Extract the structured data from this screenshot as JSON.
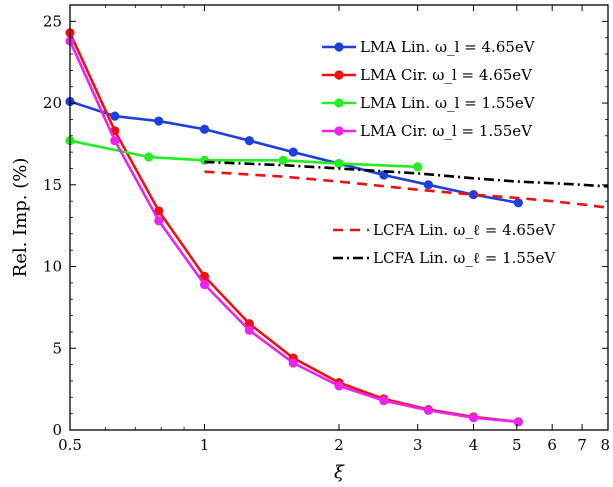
{
  "chart_data": {
    "type": "line",
    "xlabel": "ξ",
    "ylabel": "Rel. Imp. (%)",
    "xscale": "log",
    "xlim": [
      0.5,
      8
    ],
    "ylim": [
      0,
      26
    ],
    "grid": false,
    "legend_placement": "top-right",
    "x_ticks": [
      {
        "value": 0.5,
        "label": "0.5"
      },
      {
        "value": 1,
        "label": "1"
      },
      {
        "value": 2,
        "label": "2"
      },
      {
        "value": 3,
        "label": "3"
      },
      {
        "value": 4,
        "label": "4"
      },
      {
        "value": 5,
        "label": "5"
      },
      {
        "value": 6,
        "label": "6"
      },
      {
        "value": 7,
        "label": "7"
      },
      {
        "value": 8,
        "label": "8"
      }
    ],
    "y_ticks": [
      {
        "value": 0,
        "label": "0"
      },
      {
        "value": 5,
        "label": "5"
      },
      {
        "value": 10,
        "label": "10"
      },
      {
        "value": 15,
        "label": "15"
      },
      {
        "value": 20,
        "label": "20"
      },
      {
        "value": 25,
        "label": "25"
      }
    ],
    "series": [
      {
        "name": "LMA  Lin.  ω_l = 4.65eV",
        "color": "#1f3fdc",
        "style": "solid-markers",
        "x": [
          0.5,
          0.63,
          0.79,
          1.0,
          1.26,
          1.58,
          2.0,
          2.52,
          3.17,
          4.0,
          5.04
        ],
        "y": [
          20.1,
          19.2,
          18.9,
          18.4,
          17.7,
          17.0,
          16.3,
          15.6,
          15.0,
          14.4,
          13.9
        ]
      },
      {
        "name": "LMA  Cir.  ω_l = 4.65eV",
        "color": "#ee1111",
        "style": "solid-markers",
        "x": [
          0.5,
          0.63,
          0.79,
          1.0,
          1.26,
          1.58,
          2.0,
          2.52,
          3.17,
          4.0,
          5.04
        ],
        "y": [
          24.3,
          18.3,
          13.4,
          9.4,
          6.5,
          4.4,
          2.9,
          1.9,
          1.25,
          0.8,
          0.5
        ]
      },
      {
        "name": "LMA Lin. ω_l = 1.55eV",
        "color": "#22ee22",
        "style": "solid-markers",
        "x": [
          0.5,
          0.75,
          1.0,
          1.5,
          2.0,
          3.0
        ],
        "y": [
          17.7,
          16.7,
          16.5,
          16.5,
          16.3,
          16.1
        ]
      },
      {
        "name": "LMA Cir. ω_l = 1.55eV",
        "color": "#ee22ee",
        "style": "solid-markers",
        "x": [
          0.5,
          0.63,
          0.79,
          1.0,
          1.26,
          1.58,
          2.0,
          2.52,
          3.17,
          4.0,
          5.04
        ],
        "y": [
          23.8,
          17.7,
          12.8,
          8.9,
          6.1,
          4.1,
          2.7,
          1.8,
          1.2,
          0.75,
          0.5
        ]
      },
      {
        "name": "LCFA Lin. ω_ℓ = 4.65eV",
        "color": "#ee1111",
        "style": "dashed",
        "x": [
          1.0,
          1.5,
          2.0,
          3.0,
          4.0,
          5.0,
          6.0,
          7.0,
          8.0
        ],
        "y": [
          15.8,
          15.5,
          15.2,
          14.7,
          14.4,
          14.2,
          14.0,
          13.8,
          13.6
        ]
      },
      {
        "name": "LCFA Lin. ω_ℓ = 1.55eV",
        "color": "#000000",
        "style": "dashdot",
        "x": [
          1.0,
          1.5,
          2.0,
          3.0,
          4.0,
          5.0,
          6.0,
          7.0,
          8.0
        ],
        "y": [
          16.4,
          16.2,
          16.0,
          15.7,
          15.4,
          15.2,
          15.1,
          15.0,
          14.9
        ]
      }
    ]
  }
}
